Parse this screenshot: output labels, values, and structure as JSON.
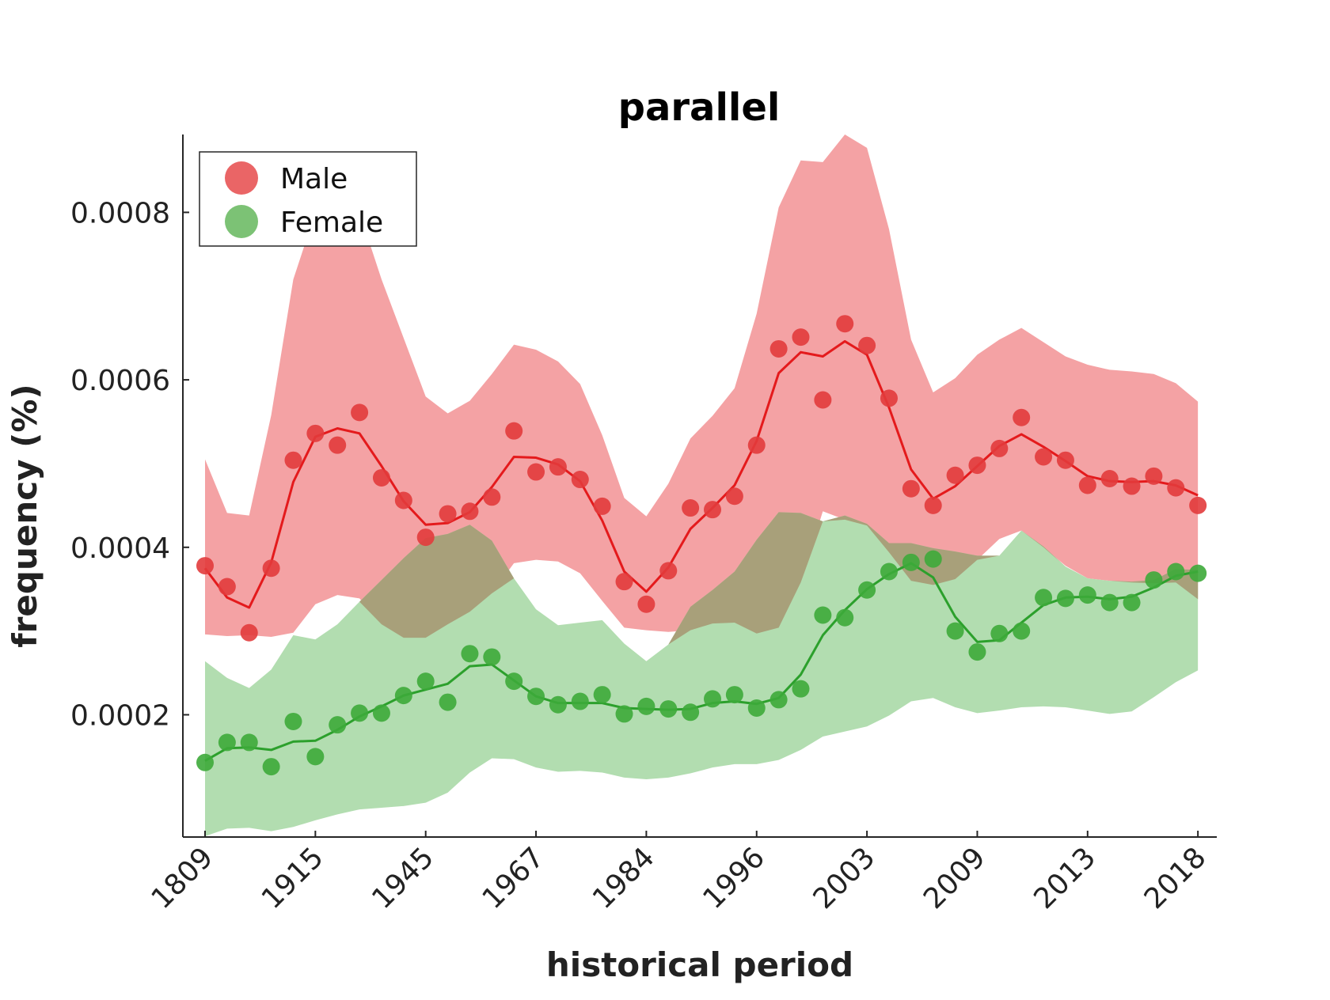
{
  "chart_data": {
    "type": "scatter",
    "title": "parallel",
    "xlabel": "historical period",
    "ylabel": "frequency (%)",
    "x_tick_labels": [
      "1809",
      "1915",
      "1945",
      "1967",
      "1984",
      "1996",
      "2003",
      "2009",
      "2013",
      "2018"
    ],
    "y_ticks": [
      0.0002,
      0.0004,
      0.0006,
      0.0008
    ],
    "y_tick_labels": [
      "0.0002",
      "0.0004",
      "0.0006",
      "0.0008"
    ],
    "ylim": [
      5.4e-05,
      0.000893
    ],
    "n_points": 46,
    "legend_position": "top-left",
    "grid": false,
    "series": [
      {
        "name": "Male",
        "color": "#e41a1c",
        "band_color": "#f4a2a4",
        "points": [
          0.000378,
          0.000353,
          0.000298,
          0.000375,
          0.000504,
          0.000536,
          0.000522,
          0.000561,
          0.000483,
          0.000456,
          0.000412,
          0.00044,
          0.000443,
          0.00046,
          0.000539,
          0.00049,
          0.000496,
          0.000481,
          0.000449,
          0.000359,
          0.000332,
          0.000372,
          0.000447,
          0.000445,
          0.000461,
          0.000522,
          0.000637,
          0.000651,
          0.000576,
          0.000667,
          0.000641,
          0.000578,
          0.00047,
          0.00045,
          0.000486,
          0.000498,
          0.000518,
          0.000555,
          0.000508,
          0.000504,
          0.000474,
          0.000482,
          0.000473,
          0.000485,
          0.000471,
          0.00045
        ],
        "smoothed": [
          0.000375,
          0.00034,
          0.000328,
          0.000382,
          0.000478,
          0.000532,
          0.000542,
          0.000536,
          0.000497,
          0.000455,
          0.000427,
          0.000429,
          0.000442,
          0.000472,
          0.000508,
          0.000507,
          0.000499,
          0.000479,
          0.000432,
          0.000371,
          0.000347,
          0.000376,
          0.000422,
          0.000447,
          0.000474,
          0.000527,
          0.000608,
          0.000633,
          0.000628,
          0.000646,
          0.00063,
          0.000567,
          0.000493,
          0.000458,
          0.000473,
          0.000497,
          0.000521,
          0.000535,
          0.00052,
          0.000503,
          0.000485,
          0.000479,
          0.000478,
          0.000479,
          0.000474,
          0.000462
        ],
        "band_upper": [
          0.000505,
          0.000441,
          0.000438,
          0.000558,
          0.00072,
          0.0008,
          0.00081,
          0.0008,
          0.00072,
          0.00065,
          0.00058,
          0.00056,
          0.000575,
          0.000607,
          0.000642,
          0.000636,
          0.000622,
          0.000595,
          0.000534,
          0.000459,
          0.000437,
          0.000476,
          0.00053,
          0.000557,
          0.00059,
          0.000679,
          0.000806,
          0.000862,
          0.00086,
          0.000893,
          0.000877,
          0.00078,
          0.000648,
          0.000585,
          0.000602,
          0.00063,
          0.000648,
          0.000662,
          0.000645,
          0.000628,
          0.000618,
          0.000612,
          0.00061,
          0.000607,
          0.000596,
          0.000574
        ],
        "band_lower": [
          0.000296,
          0.000294,
          0.000295,
          0.000293,
          0.000298,
          0.000332,
          0.000343,
          0.000339,
          0.000308,
          0.000292,
          0.000292,
          0.000308,
          0.000323,
          0.000345,
          0.000381,
          0.000385,
          0.000383,
          0.000369,
          0.000336,
          0.000304,
          0.000301,
          0.000299,
          0.000301,
          0.000309,
          0.00031,
          0.000297,
          0.000304,
          0.000358,
          0.000443,
          0.000433,
          0.000426,
          0.000394,
          0.00036,
          0.000355,
          0.000362,
          0.000385,
          0.00041,
          0.00042,
          0.0004,
          0.000378,
          0.000363,
          0.00036,
          0.000358,
          0.000357,
          0.000358,
          0.000338
        ]
      },
      {
        "name": "Female",
        "color": "#2ca02c",
        "band_color": "#b2ddb0",
        "points": [
          0.000143,
          0.000167,
          0.000167,
          0.000138,
          0.000192,
          0.00015,
          0.000188,
          0.000202,
          0.000202,
          0.000223,
          0.00024,
          0.000215,
          0.000273,
          0.000269,
          0.00024,
          0.000222,
          0.000212,
          0.000216,
          0.000224,
          0.000201,
          0.00021,
          0.000207,
          0.000203,
          0.000219,
          0.000224,
          0.000208,
          0.000218,
          0.000231,
          0.000319,
          0.000316,
          0.000349,
          0.000371,
          0.000382,
          0.000386,
          0.0003,
          0.000275,
          0.000297,
          0.0003,
          0.00034,
          0.000339,
          0.000343,
          0.000334,
          0.000334,
          0.000361,
          0.000371,
          0.000369
        ],
        "smoothed": [
          0.000145,
          0.00016,
          0.000161,
          0.000158,
          0.000168,
          0.000169,
          0.000182,
          0.000198,
          0.00021,
          0.000223,
          0.00023,
          0.000237,
          0.000258,
          0.00026,
          0.000241,
          0.000222,
          0.000214,
          0.000214,
          0.000214,
          0.000208,
          0.000207,
          0.000206,
          0.000207,
          0.000214,
          0.000216,
          0.000213,
          0.00022,
          0.000248,
          0.000295,
          0.000325,
          0.00035,
          0.000368,
          0.000381,
          0.000364,
          0.000317,
          0.000287,
          0.000289,
          0.00031,
          0.000331,
          0.00034,
          0.000341,
          0.000338,
          0.000341,
          0.000352,
          0.000366,
          0.000371
        ],
        "band_upper": [
          0.000264,
          0.000244,
          0.000232,
          0.000254,
          0.000295,
          0.00029,
          0.000308,
          0.000335,
          0.000361,
          0.000387,
          0.000411,
          0.000416,
          0.000427,
          0.000408,
          0.000363,
          0.000326,
          0.000307,
          0.00031,
          0.000313,
          0.000285,
          0.000264,
          0.000284,
          0.000329,
          0.000349,
          0.000371,
          0.000409,
          0.000442,
          0.000441,
          0.000431,
          0.000438,
          0.000428,
          0.000405,
          0.000405,
          0.000399,
          0.000395,
          0.00039,
          0.00039,
          0.00042,
          0.000401,
          0.000377,
          0.000363,
          0.00036,
          0.000359,
          0.000361,
          0.000374,
          0.000373
        ],
        "band_lower": [
          5.5e-05,
          6.4e-05,
          6.5e-05,
          6.1e-05,
          6.6e-05,
          7.4e-05,
          8.1e-05,
          8.7e-05,
          8.9e-05,
          9.1e-05,
          9.5e-05,
          0.000107,
          0.000131,
          0.000148,
          0.000147,
          0.000137,
          0.000132,
          0.000133,
          0.000131,
          0.000125,
          0.000123,
          0.000125,
          0.00013,
          0.000137,
          0.000141,
          0.000141,
          0.000146,
          0.000158,
          0.000174,
          0.00018,
          0.000186,
          0.000199,
          0.000216,
          0.00022,
          0.000209,
          0.000202,
          0.000205,
          0.000209,
          0.00021,
          0.000209,
          0.000205,
          0.000201,
          0.000204,
          0.000221,
          0.000239,
          0.000253
        ]
      }
    ],
    "overlap_color": "#a8a07a"
  }
}
